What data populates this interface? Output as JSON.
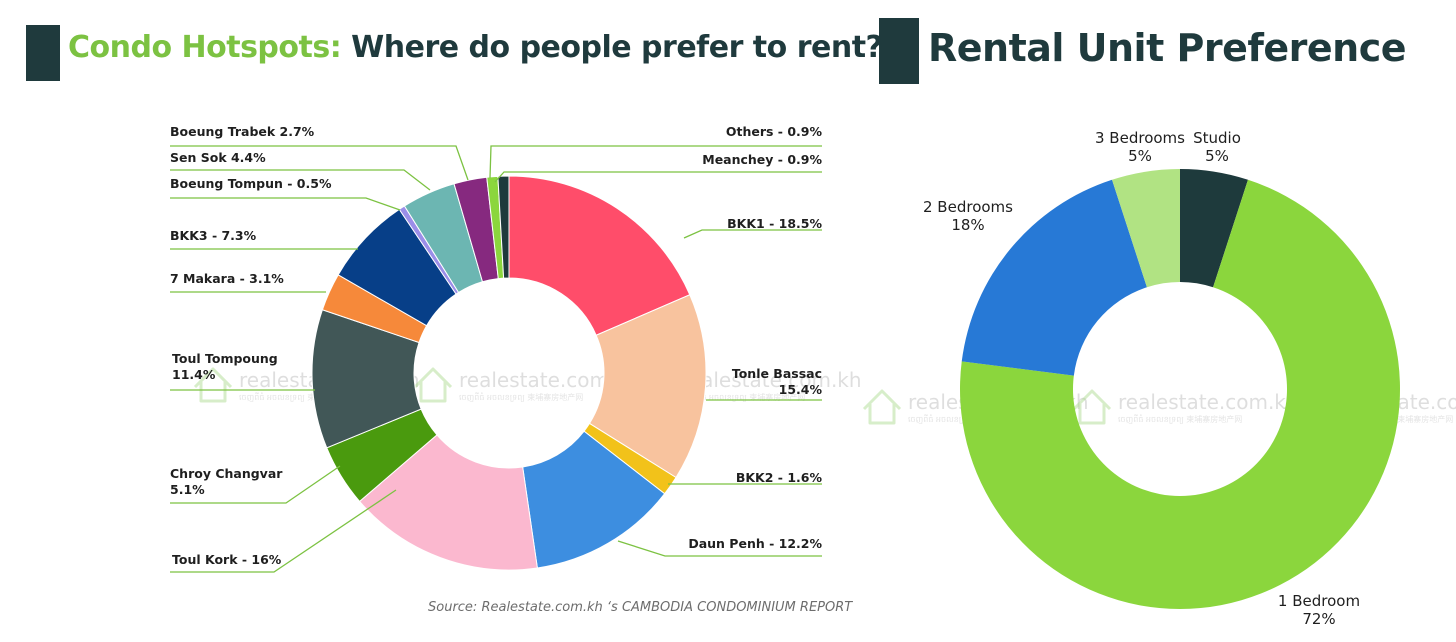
{
  "left_title": {
    "highlight": "Condo Hotspots:",
    "rest": " Where do people prefer to rent?"
  },
  "right_title": "Rental Unit Preference",
  "source": "Source: Realestate.com.kh ‘s CAMBODIA CONDOMINIUM REPORT",
  "watermark": {
    "brand": "realestate.com.kh",
    "sub": "ចេញពីធំ អចលនទ្រព្យ   柬埔寨房地产网"
  },
  "colors": {
    "title_dark": "#1f3a3d",
    "title_green": "#7cc242",
    "leader_green": "#7cc242"
  },
  "chart_data": [
    {
      "type": "pie",
      "title": "Condo Hotspots: Where do people prefer to rent?",
      "donut": true,
      "slices": [
        {
          "name": "BKK1",
          "label": "BKK1 - 18.5%",
          "value": 18.5,
          "color": "#ff4d6a"
        },
        {
          "name": "Tonle Bassac",
          "label": "Tonle Bassac\n15.4%",
          "value": 15.4,
          "color": "#f8c39e"
        },
        {
          "name": "BKK2",
          "label": "BKK2 - 1.6%",
          "value": 1.6,
          "color": "#f2c21a"
        },
        {
          "name": "Daun Penh",
          "label": "Daun Penh - 12.2%",
          "value": 12.2,
          "color": "#3d8ee0"
        },
        {
          "name": "Toul Kork",
          "label": "Toul Kork - 16%",
          "value": 16,
          "color": "#fbb8cf"
        },
        {
          "name": "Chroy Changvar",
          "label": "Chroy Changvar\n5.1%",
          "value": 5.1,
          "color": "#4a9a0e"
        },
        {
          "name": "Toul Tompoung",
          "label": "Toul Tompoung\n11.4%",
          "value": 11.4,
          "color": "#415757"
        },
        {
          "name": "7 Makara",
          "label": "7 Makara - 3.1%",
          "value": 3.1,
          "color": "#f6893a"
        },
        {
          "name": "BKK3",
          "label": "BKK3 - 7.3%",
          "value": 7.3,
          "color": "#073f88"
        },
        {
          "name": "Boeung Tompun",
          "label": "Boeung Tompun - 0.5%",
          "value": 0.5,
          "color": "#9b8ee8"
        },
        {
          "name": "Sen Sok",
          "label": "Sen Sok 4.4%",
          "value": 4.4,
          "color": "#6cb6b2"
        },
        {
          "name": "Boeung Trabek",
          "label": "Boeung Trabek  2.7%",
          "value": 2.7,
          "color": "#86297f"
        },
        {
          "name": "Meanchey",
          "label": "Meanchey - 0.9%",
          "value": 0.9,
          "color": "#8bd63d"
        },
        {
          "name": "Others",
          "label": "Others - 0.9%",
          "value": 0.9,
          "color": "#1e3a3c"
        }
      ]
    },
    {
      "type": "pie",
      "title": "Rental Unit Preference",
      "donut": true,
      "slices": [
        {
          "name": "Studio",
          "label": "Studio\n5%",
          "value": 5,
          "color": "#1e3a3c"
        },
        {
          "name": "1 Bedroom",
          "label": "1 Bedroom\n72%",
          "value": 72,
          "color": "#8bd63d"
        },
        {
          "name": "2 Bedrooms",
          "label": "2 Bedrooms\n18%",
          "value": 18,
          "color": "#2779d6"
        },
        {
          "name": "3 Bedrooms",
          "label": "3 Bedrooms\n5%",
          "value": 5,
          "color": "#b1e383"
        }
      ]
    }
  ]
}
